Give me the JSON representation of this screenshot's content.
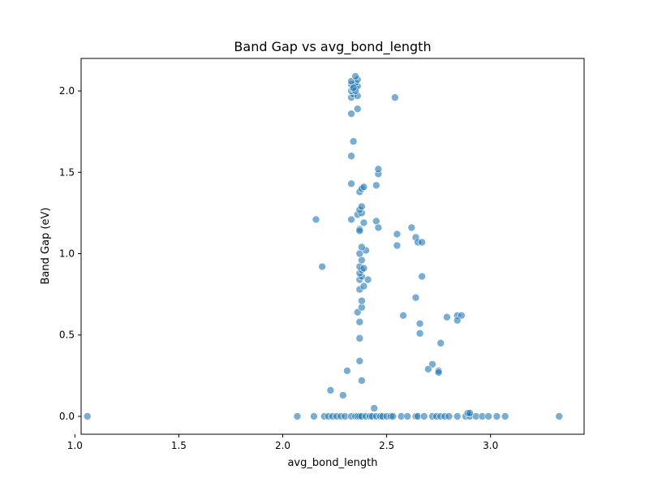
{
  "chart_data": {
    "type": "scatter",
    "title": "Band Gap vs avg_bond_length",
    "xlabel": "avg_bond_length",
    "ylabel": "Band Gap (eV)",
    "xlim": [
      1.03,
      3.45
    ],
    "ylim": [
      -0.11,
      2.2
    ],
    "xticks": [
      1.0,
      1.5,
      2.0,
      2.5,
      3.0
    ],
    "yticks": [
      0.0,
      0.5,
      1.0,
      1.5,
      2.0
    ],
    "xtick_labels": [
      "1.0",
      "1.5",
      "2.0",
      "2.5",
      "3.0"
    ],
    "ytick_labels": [
      "0.0",
      "0.5",
      "1.0",
      "1.5",
      "2.0"
    ],
    "grid": false,
    "legend": "none",
    "marker_color": "#1f77b4",
    "marker_alpha": 0.6,
    "edge_color": "#ffffff",
    "points": [
      [
        1.06,
        0.0
      ],
      [
        2.07,
        0.0
      ],
      [
        2.15,
        0.0
      ],
      [
        2.2,
        0.0
      ],
      [
        2.22,
        0.0
      ],
      [
        2.24,
        0.0
      ],
      [
        2.26,
        0.0
      ],
      [
        2.28,
        0.0
      ],
      [
        2.3,
        0.0
      ],
      [
        2.33,
        0.0
      ],
      [
        2.35,
        0.0
      ],
      [
        2.36,
        0.0
      ],
      [
        2.37,
        0.0
      ],
      [
        2.38,
        0.0
      ],
      [
        2.4,
        0.0
      ],
      [
        2.42,
        0.0
      ],
      [
        2.43,
        0.0
      ],
      [
        2.45,
        0.0
      ],
      [
        2.47,
        0.0
      ],
      [
        2.48,
        0.0
      ],
      [
        2.5,
        0.0
      ],
      [
        2.52,
        0.0
      ],
      [
        2.53,
        0.0
      ],
      [
        2.57,
        0.0
      ],
      [
        2.6,
        0.0
      ],
      [
        2.64,
        0.0
      ],
      [
        2.65,
        0.0
      ],
      [
        2.68,
        0.0
      ],
      [
        2.72,
        0.0
      ],
      [
        2.74,
        0.0
      ],
      [
        2.76,
        0.0
      ],
      [
        2.78,
        0.0
      ],
      [
        2.8,
        0.0
      ],
      [
        2.84,
        0.0
      ],
      [
        2.88,
        0.0
      ],
      [
        2.9,
        0.0
      ],
      [
        2.93,
        0.0
      ],
      [
        2.96,
        0.0
      ],
      [
        2.99,
        0.0
      ],
      [
        3.03,
        0.0
      ],
      [
        3.07,
        0.0
      ],
      [
        3.33,
        0.0
      ],
      [
        2.44,
        0.05
      ],
      [
        2.89,
        0.02
      ],
      [
        2.9,
        0.02
      ],
      [
        2.29,
        0.13
      ],
      [
        2.23,
        0.16
      ],
      [
        2.31,
        0.28
      ],
      [
        2.38,
        0.22
      ],
      [
        2.37,
        0.34
      ],
      [
        2.37,
        0.48
      ],
      [
        2.37,
        0.58
      ],
      [
        2.36,
        0.64
      ],
      [
        2.38,
        0.67
      ],
      [
        2.38,
        0.71
      ],
      [
        2.37,
        0.78
      ],
      [
        2.39,
        0.8
      ],
      [
        2.37,
        0.84
      ],
      [
        2.41,
        0.84
      ],
      [
        2.38,
        0.86
      ],
      [
        2.37,
        0.88
      ],
      [
        2.38,
        0.9
      ],
      [
        2.37,
        0.92
      ],
      [
        2.39,
        0.91
      ],
      [
        2.38,
        0.96
      ],
      [
        2.37,
        1.0
      ],
      [
        2.4,
        1.02
      ],
      [
        2.38,
        1.04
      ],
      [
        2.37,
        1.15
      ],
      [
        2.37,
        1.14
      ],
      [
        2.39,
        1.19
      ],
      [
        2.33,
        1.21
      ],
      [
        2.36,
        1.24
      ],
      [
        2.38,
        1.25
      ],
      [
        2.37,
        1.27
      ],
      [
        2.38,
        1.29
      ],
      [
        2.37,
        1.38
      ],
      [
        2.38,
        1.4
      ],
      [
        2.39,
        1.41
      ],
      [
        2.33,
        1.43
      ],
      [
        2.45,
        1.42
      ],
      [
        2.46,
        1.49
      ],
      [
        2.46,
        1.52
      ],
      [
        2.33,
        1.6
      ],
      [
        2.34,
        1.69
      ],
      [
        2.33,
        1.86
      ],
      [
        2.36,
        1.89
      ],
      [
        2.33,
        1.96
      ],
      [
        2.34,
        1.98
      ],
      [
        2.33,
        2.0
      ],
      [
        2.34,
        2.01
      ],
      [
        2.35,
        2.02
      ],
      [
        2.36,
        2.03
      ],
      [
        2.33,
        2.04
      ],
      [
        2.35,
        2.05
      ],
      [
        2.33,
        2.06
      ],
      [
        2.36,
        2.07
      ],
      [
        2.35,
        2.09
      ],
      [
        2.36,
        1.97
      ],
      [
        2.35,
        2.0
      ],
      [
        2.34,
        2.02
      ],
      [
        2.54,
        1.96
      ],
      [
        2.16,
        1.21
      ],
      [
        2.19,
        0.92
      ],
      [
        2.45,
        1.2
      ],
      [
        2.46,
        1.16
      ],
      [
        2.55,
        1.12
      ],
      [
        2.55,
        1.05
      ],
      [
        2.62,
        1.16
      ],
      [
        2.64,
        1.1
      ],
      [
        2.65,
        1.07
      ],
      [
        2.67,
        1.07
      ],
      [
        2.67,
        0.86
      ],
      [
        2.64,
        0.73
      ],
      [
        2.58,
        0.62
      ],
      [
        2.66,
        0.57
      ],
      [
        2.66,
        0.51
      ],
      [
        2.76,
        0.45
      ],
      [
        2.72,
        0.32
      ],
      [
        2.7,
        0.29
      ],
      [
        2.75,
        0.28
      ],
      [
        2.75,
        0.27
      ],
      [
        2.79,
        0.61
      ],
      [
        2.84,
        0.62
      ],
      [
        2.86,
        0.62
      ],
      [
        2.84,
        0.59
      ]
    ]
  }
}
